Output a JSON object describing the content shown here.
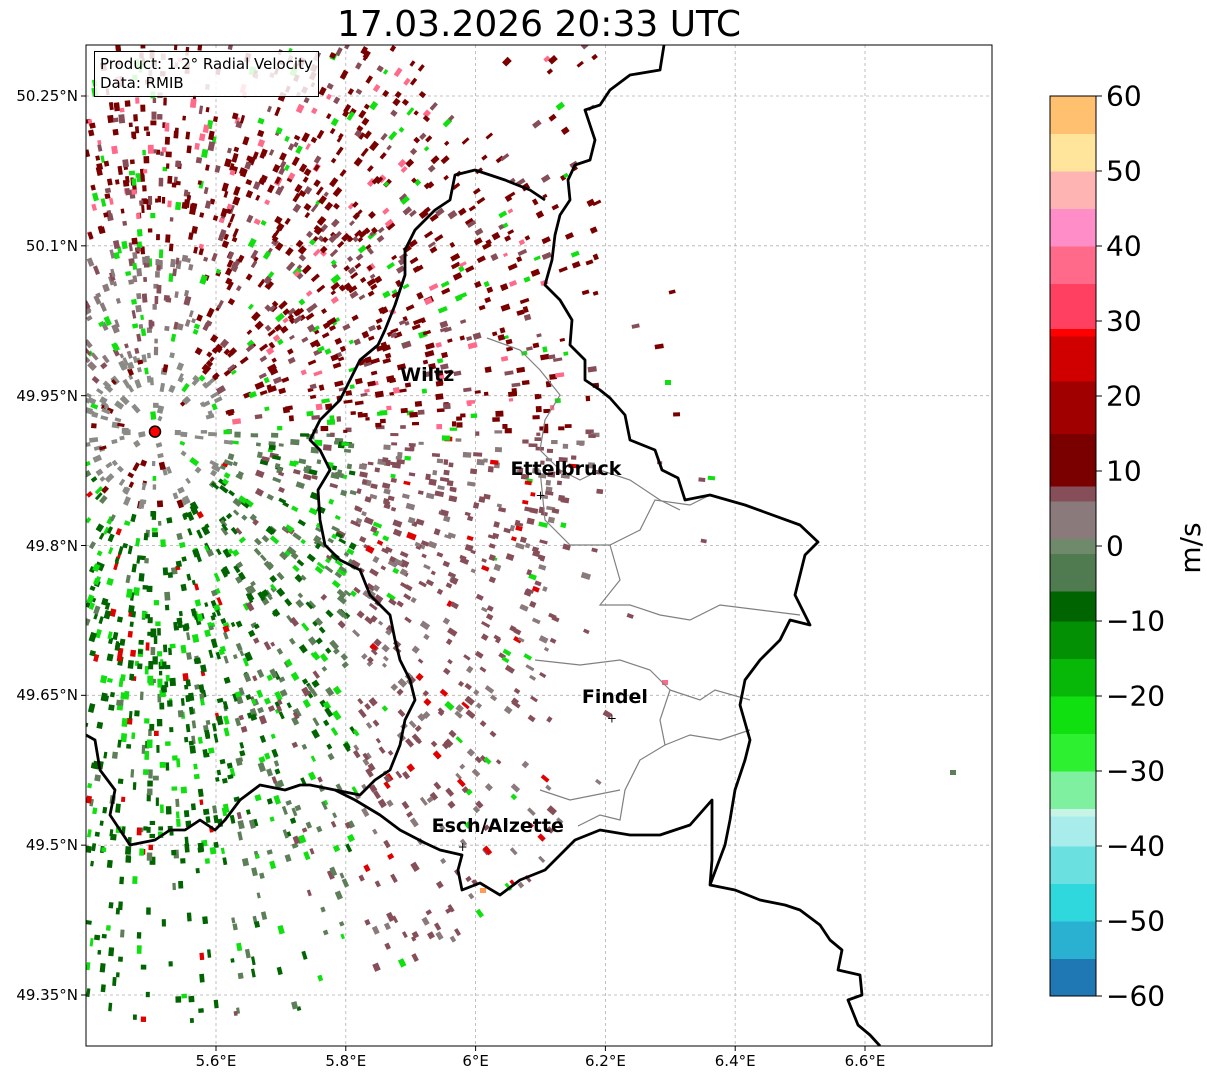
{
  "title": "17.03.2026 20:33 UTC",
  "info_box": {
    "product": "Product: 1.2° Radial Velocity",
    "data": "Data: RMIB"
  },
  "map": {
    "lon_range": [
      5.4,
      6.8
    ],
    "lat_range": [
      49.3,
      50.3
    ],
    "lat_ticks": [
      {
        "value": 50.25,
        "label": "50.25°N"
      },
      {
        "value": 50.1,
        "label": "50.1°N"
      },
      {
        "value": 49.95,
        "label": "49.95°N"
      },
      {
        "value": 49.8,
        "label": "49.8°N"
      },
      {
        "value": 49.65,
        "label": "49.65°N"
      },
      {
        "value": 49.5,
        "label": "49.5°N"
      },
      {
        "value": 49.35,
        "label": "49.35°N"
      }
    ],
    "lon_ticks": [
      {
        "value": 5.6,
        "label": "5.6°E"
      },
      {
        "value": 5.8,
        "label": "5.8°E"
      },
      {
        "value": 6.0,
        "label": "6°E"
      },
      {
        "value": 6.2,
        "label": "6.2°E"
      },
      {
        "value": 6.4,
        "label": "6.4°E"
      },
      {
        "value": 6.6,
        "label": "6.6°E"
      }
    ],
    "radar_site": {
      "lon": 5.506,
      "lat": 49.914
    },
    "cities": [
      {
        "name": "Wiltz",
        "lon": 5.93,
        "lat": 49.966,
        "show_marker": false
      },
      {
        "name": "Ettelbruck",
        "lon": 6.1,
        "lat": 49.85,
        "show_marker": true
      },
      {
        "name": "Findel",
        "lon": 6.21,
        "lat": 49.627,
        "show_marker": true
      },
      {
        "name": "Esch/Alzette",
        "lon": 5.98,
        "lat": 49.498,
        "show_marker": true
      }
    ]
  },
  "colorbar": {
    "label": "m/s",
    "range": [
      -60,
      60
    ],
    "ticks": [
      {
        "value": 60,
        "label": "60"
      },
      {
        "value": 50,
        "label": "50"
      },
      {
        "value": 40,
        "label": "40"
      },
      {
        "value": 30,
        "label": "30"
      },
      {
        "value": 20,
        "label": "20"
      },
      {
        "value": 10,
        "label": "10"
      },
      {
        "value": 0,
        "label": "0"
      },
      {
        "value": -10,
        "label": "−10"
      },
      {
        "value": -20,
        "label": "−20"
      },
      {
        "value": -30,
        "label": "−30"
      },
      {
        "value": -40,
        "label": "−40"
      },
      {
        "value": -50,
        "label": "−50"
      },
      {
        "value": -60,
        "label": "−60"
      }
    ],
    "stops": [
      {
        "value": -60,
        "color": "#1f77b4"
      },
      {
        "value": -55,
        "color": "#2ab0d0"
      },
      {
        "value": -50,
        "color": "#2fd8dc"
      },
      {
        "value": -45,
        "color": "#6ae0e0"
      },
      {
        "value": -40,
        "color": "#a8ecec"
      },
      {
        "value": -36,
        "color": "#c8f4e8"
      },
      {
        "value": -35,
        "color": "#7ff0a0"
      },
      {
        "value": -30,
        "color": "#2cf030"
      },
      {
        "value": -25,
        "color": "#10e010"
      },
      {
        "value": -20,
        "color": "#08b808"
      },
      {
        "value": -15,
        "color": "#049004"
      },
      {
        "value": -10,
        "color": "#006400"
      },
      {
        "value": -6,
        "color": "#507a50"
      },
      {
        "value": -1,
        "color": "#6e8a6a"
      },
      {
        "value": 1,
        "color": "#8a7a7c"
      },
      {
        "value": 6,
        "color": "#864e58"
      },
      {
        "value": 8,
        "color": "#7a0000"
      },
      {
        "value": 15,
        "color": "#a00000"
      },
      {
        "value": 22,
        "color": "#d00000"
      },
      {
        "value": 28,
        "color": "#ff0000"
      },
      {
        "value": 29,
        "color": "#ff4060"
      },
      {
        "value": 35,
        "color": "#ff6a8a"
      },
      {
        "value": 40,
        "color": "#ff8ec8"
      },
      {
        "value": 45,
        "color": "#ffb4b4"
      },
      {
        "value": 50,
        "color": "#ffe49c"
      },
      {
        "value": 55,
        "color": "#ffc070"
      },
      {
        "value": 60,
        "color": "#ff9a50"
      }
    ]
  },
  "colors": {
    "positive_dark": "#7a0000",
    "positive_mid": "#864e58",
    "neutral": "#8a7a7c",
    "negative_gray": "#5e7e5a",
    "negative_dark": "#006400",
    "negative_bright": "#10e010",
    "red": "#e00000",
    "pink": "#ff6a8a"
  }
}
